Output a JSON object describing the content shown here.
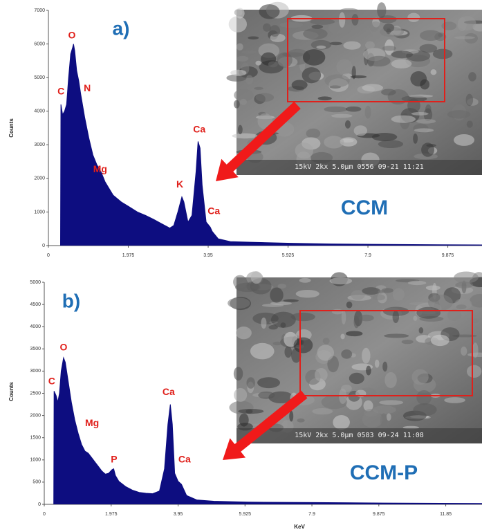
{
  "chart_data": [
    {
      "type": "area",
      "panel_label": "a)",
      "sample": "CCM",
      "image_caption": "15kV 2kx 5.0µm 0556 09-21 11:21",
      "ylabel": "Counts",
      "xlim": [
        0,
        10.72
      ],
      "ylim": [
        0,
        7000
      ],
      "xticks": [
        0,
        1.975,
        3.95,
        5.925,
        7.9,
        9.875
      ],
      "yticks": [
        0,
        1000,
        2000,
        3000,
        4000,
        5000,
        6000,
        7000
      ],
      "x": [
        0.3,
        0.31,
        0.35,
        0.4,
        0.45,
        0.5,
        0.55,
        0.6,
        0.62,
        0.65,
        0.7,
        0.75,
        0.8,
        0.9,
        1.0,
        1.1,
        1.2,
        1.25,
        1.3,
        1.4,
        1.5,
        1.6,
        1.8,
        2.0,
        2.2,
        2.4,
        2.6,
        2.8,
        3.0,
        3.1,
        3.2,
        3.3,
        3.35,
        3.45,
        3.55,
        3.65,
        3.7,
        3.75,
        3.8,
        3.9,
        4.0,
        4.05,
        4.2,
        4.5,
        5.0,
        6.0,
        7.0,
        8.0,
        9.0,
        10.72
      ],
      "series": [
        {
          "color": "#0d0d80",
          "values": [
            0,
            4200,
            3900,
            4000,
            4200,
            5000,
            5700,
            5900,
            6000,
            5800,
            5200,
            4900,
            4500,
            3800,
            3200,
            2700,
            2400,
            2300,
            2200,
            1900,
            1700,
            1500,
            1300,
            1150,
            1000,
            900,
            780,
            650,
            520,
            600,
            1000,
            1450,
            1300,
            700,
            900,
            2200,
            3100,
            2900,
            1800,
            700,
            550,
            420,
            200,
            120,
            100,
            70,
            50,
            40,
            30,
            20
          ]
        }
      ],
      "annotations": [
        {
          "text": "C",
          "x": 0.31,
          "y": 4570
        },
        {
          "text": "O",
          "x": 0.58,
          "y": 6240
        },
        {
          "text": "N",
          "x": 0.96,
          "y": 4670
        },
        {
          "text": "Mg",
          "x": 1.28,
          "y": 2260
        },
        {
          "text": "K",
          "x": 3.25,
          "y": 1810
        },
        {
          "text": "Ca",
          "x": 3.73,
          "y": 3440
        },
        {
          "text": "Ca",
          "x": 4.09,
          "y": 1010
        }
      ]
    },
    {
      "type": "area",
      "panel_label": "b)",
      "sample": "CCM-P",
      "image_caption": "15kV 2kx 5.0µm 0583 09-24 11:08",
      "ylabel": "Counts",
      "xlabel": "KeV",
      "xlim": [
        0,
        12.92
      ],
      "ylim": [
        0,
        5000
      ],
      "xticks": [
        0,
        1.975,
        3.95,
        5.925,
        7.9,
        9.875,
        11.85
      ],
      "yticks": [
        0,
        500,
        1000,
        1500,
        2000,
        2500,
        3000,
        3500,
        4000,
        4500,
        5000
      ],
      "x": [
        0.28,
        0.29,
        0.35,
        0.4,
        0.45,
        0.5,
        0.57,
        0.62,
        0.7,
        0.8,
        0.9,
        1.0,
        1.1,
        1.2,
        1.3,
        1.4,
        1.5,
        1.6,
        1.7,
        1.8,
        1.9,
        2.0,
        2.05,
        2.1,
        2.2,
        2.4,
        2.6,
        2.8,
        3.0,
        3.2,
        3.4,
        3.55,
        3.65,
        3.72,
        3.78,
        3.85,
        3.95,
        4.05,
        4.2,
        4.5,
        5.0,
        6.0,
        8.0,
        10.0,
        12.92
      ],
      "series": [
        {
          "color": "#0d0d80",
          "values": [
            0,
            2550,
            2450,
            2300,
            2500,
            3000,
            3300,
            3200,
            2800,
            2300,
            1900,
            1600,
            1350,
            1200,
            1150,
            1050,
            950,
            850,
            750,
            680,
            700,
            780,
            800,
            650,
            520,
            400,
            320,
            270,
            250,
            240,
            300,
            800,
            1800,
            2250,
            1800,
            700,
            520,
            450,
            200,
            100,
            70,
            50,
            40,
            30,
            20
          ]
        }
      ],
      "annotations": [
        {
          "text": "C",
          "x": 0.22,
          "y": 2760
        },
        {
          "text": "O",
          "x": 0.57,
          "y": 3520
        },
        {
          "text": "Mg",
          "x": 1.41,
          "y": 1820
        },
        {
          "text": "P",
          "x": 2.06,
          "y": 1000
        },
        {
          "text": "Ca",
          "x": 3.67,
          "y": 2520
        },
        {
          "text": "Ca",
          "x": 4.14,
          "y": 1000
        }
      ]
    }
  ]
}
